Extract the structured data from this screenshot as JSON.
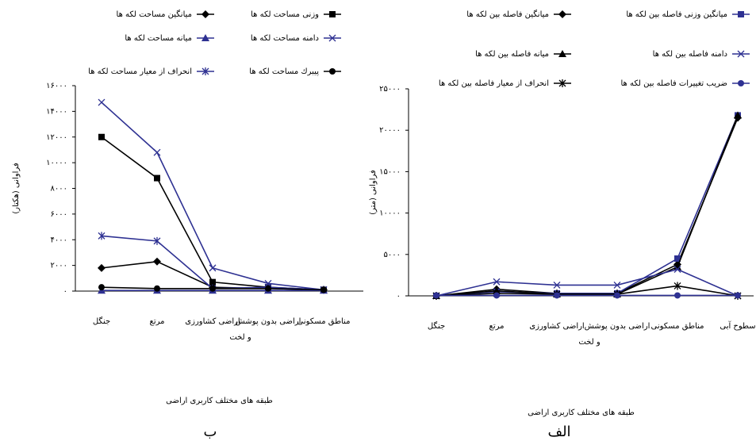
{
  "chart_data": [
    {
      "type": "line",
      "panel": "ب",
      "x_label": "طبقه های مختلف کاربری اراضی",
      "y_label": "فراوانی (هکتار)",
      "categories": [
        "جنگل",
        "مرتع",
        "اراضی کشاورزی",
        "اراضی بدون پوشش و لخت",
        "مناطق مسکونی"
      ],
      "ylim": [
        0,
        16000
      ],
      "yticks": [
        {
          "value": 0,
          "label": "۰"
        },
        {
          "value": 2000,
          "label": "۲۰۰۰"
        },
        {
          "value": 4000,
          "label": "۴۰۰۰"
        },
        {
          "value": 6000,
          "label": "۶۰۰۰"
        },
        {
          "value": 8000,
          "label": "۸۰۰۰"
        },
        {
          "value": 10000,
          "label": "۱۰۰۰۰"
        },
        {
          "value": 12000,
          "label": "۱۲۰۰۰"
        },
        {
          "value": 14000,
          "label": "۱۴۰۰۰"
        },
        {
          "value": 16000,
          "label": "۱۶۰۰۰"
        }
      ],
      "series": [
        {
          "name": "میانگین مساحت لکه ها",
          "color": "#000000",
          "marker": "diamond",
          "values": [
            1800,
            2300,
            300,
            200,
            100
          ]
        },
        {
          "name": "وزنی مساحت لکه ها",
          "color": "#000000",
          "marker": "square",
          "values": [
            12000,
            8800,
            700,
            300,
            100
          ]
        },
        {
          "name": "میانه مساحت لکه ها",
          "color": "#2e3192",
          "marker": "triangle",
          "values": [
            50,
            50,
            50,
            50,
            50
          ]
        },
        {
          "name": "دامنه مساحت لکه ها",
          "color": "#2e3192",
          "marker": "x",
          "values": [
            14700,
            10800,
            1800,
            600,
            100
          ]
        },
        {
          "name": "انحراف از معیار مساحت لکه ها",
          "color": "#2e3192",
          "marker": "star",
          "values": [
            4300,
            3900,
            200,
            300,
            100
          ]
        },
        {
          "name": "پیبرك مساحت لکه ها",
          "color": "#000000",
          "marker": "circle",
          "values": [
            300,
            200,
            200,
            200,
            100
          ]
        }
      ]
    },
    {
      "type": "line",
      "panel": "الف",
      "x_label": "طبقه های مختلف کاربری اراضی",
      "y_label": "فراوانی (متر)",
      "categories": [
        "جنگل",
        "مرتع",
        "اراضی کشاورزی",
        "اراضی بدون پوشش و لخت",
        "مناطق مسکونی",
        "سطوح آبی"
      ],
      "ylim": [
        0,
        25000
      ],
      "yticks": [
        {
          "value": 0,
          "label": "۰"
        },
        {
          "value": 5000,
          "label": "۵۰۰۰"
        },
        {
          "value": 10000,
          "label": "۱۰۰۰۰"
        },
        {
          "value": 15000,
          "label": "۱۵۰۰۰"
        },
        {
          "value": 20000,
          "label": "۲۰۰۰۰"
        },
        {
          "value": 25000,
          "label": "۲۵۰۰۰"
        }
      ],
      "series": [
        {
          "name": "میانگین فاصله بین لکه ها",
          "color": "#000000",
          "marker": "diamond",
          "values": [
            0,
            800,
            300,
            300,
            3800,
            21500
          ]
        },
        {
          "name": "میانگین وزنی فاصله بین لکه ها",
          "color": "#2e3192",
          "marker": "square",
          "values": [
            0,
            500,
            300,
            300,
            4500,
            21800
          ]
        },
        {
          "name": "میانه فاصله بین لکه ها",
          "color": "#000000",
          "marker": "triangle",
          "values": [
            0,
            600,
            200,
            200,
            3500,
            21800
          ]
        },
        {
          "name": "دامنه فاصله بین لکه ها",
          "color": "#2e3192",
          "marker": "x",
          "values": [
            0,
            1700,
            1300,
            1300,
            3200,
            0
          ]
        },
        {
          "name": "انحراف از معیار فاصله بین لکه ها",
          "color": "#000000",
          "marker": "star",
          "values": [
            0,
            300,
            200,
            200,
            1200,
            0
          ]
        },
        {
          "name": "ضریب تغییرات فاصله بین لکه ها",
          "color": "#2e3192",
          "marker": "circle",
          "values": [
            50,
            50,
            50,
            50,
            50,
            50
          ]
        }
      ]
    }
  ]
}
